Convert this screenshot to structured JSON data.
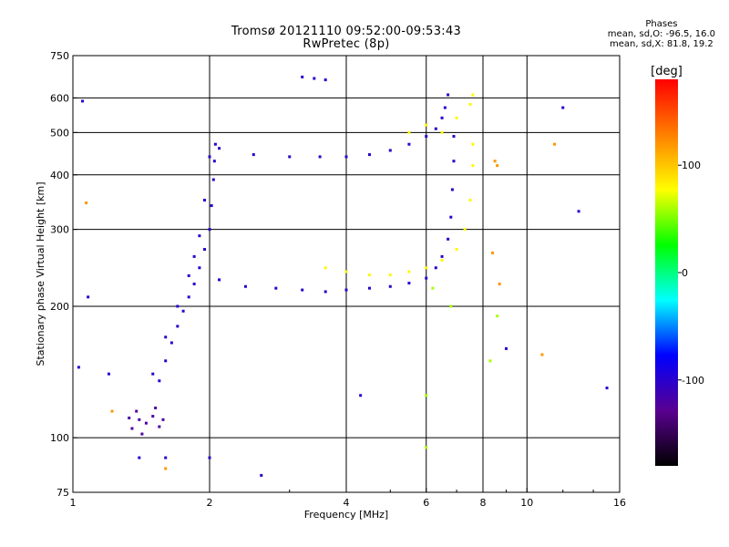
{
  "header": {
    "title_line1": "Tromsø 20121110 09:52:00-09:53:43",
    "title_line2": "RwPretec (8p)"
  },
  "info": {
    "heading": "Phases",
    "line_o": "mean, sd,O: -96.5, 16.0",
    "line_x": "mean, sd,X:  81.8, 19.2"
  },
  "chart_data": {
    "type": "scatter",
    "title": "Tromsø 20121110 09:52:00-09:53:43",
    "subtitle": "RwPretec (8p)",
    "xlabel": "Frequency [MHz]",
    "ylabel": "Stationary phase Virtual Height [km]",
    "x_scale": "log",
    "y_scale": "log",
    "xlim": [
      1,
      16
    ],
    "ylim": [
      75,
      750
    ],
    "x_ticks": [
      1,
      2,
      4,
      6,
      8,
      10,
      16
    ],
    "y_ticks": [
      75,
      100,
      200,
      300,
      400,
      500,
      600,
      750
    ],
    "x_gridlines": [
      2,
      4,
      6,
      8,
      10
    ],
    "y_gridlines": [
      100,
      200,
      300,
      400,
      500,
      600
    ],
    "grid": true,
    "colorbar": {
      "label": "[deg]",
      "range": [
        -180,
        180
      ],
      "ticks": [
        100,
        0,
        -100
      ],
      "colormap": "rainbow",
      "colors": [
        "#000000",
        "#5a0090",
        "#0000ff",
        "#00ffff",
        "#00ff00",
        "#ffff00",
        "#ff7f00",
        "#ff0000"
      ]
    },
    "series": [
      {
        "description_of_trace": "",
        "phase_deg": -100,
        "points": [
          [
            1.55,
            135
          ],
          [
            1.6,
            150
          ],
          [
            1.65,
            165
          ],
          [
            1.7,
            180
          ],
          [
            1.75,
            195
          ],
          [
            1.8,
            210
          ],
          [
            1.85,
            225
          ],
          [
            1.9,
            245
          ],
          [
            1.95,
            270
          ],
          [
            2.0,
            300
          ],
          [
            2.02,
            340
          ],
          [
            2.04,
            390
          ],
          [
            2.05,
            430
          ],
          [
            2.06,
            470
          ],
          [
            2.0,
            440
          ],
          [
            1.95,
            350
          ],
          [
            1.9,
            290
          ],
          [
            1.85,
            260
          ],
          [
            1.8,
            235
          ],
          [
            1.7,
            200
          ],
          [
            1.6,
            170
          ],
          [
            1.5,
            140
          ]
        ]
      },
      {
        "phase_deg": -100,
        "points": [
          [
            2.1,
            230
          ],
          [
            2.4,
            222
          ],
          [
            2.8,
            220
          ],
          [
            3.2,
            218
          ],
          [
            3.6,
            216
          ],
          [
            4.0,
            218
          ],
          [
            4.5,
            220
          ],
          [
            5.0,
            222
          ],
          [
            5.5,
            226
          ],
          [
            6.0,
            232
          ],
          [
            6.3,
            245
          ],
          [
            6.5,
            260
          ],
          [
            6.7,
            285
          ],
          [
            6.8,
            320
          ],
          [
            6.85,
            370
          ],
          [
            6.9,
            430
          ],
          [
            6.9,
            490
          ]
        ]
      },
      {
        "phase_deg": -100,
        "points": [
          [
            2.1,
            460
          ],
          [
            2.5,
            445
          ],
          [
            3.0,
            440
          ],
          [
            3.5,
            440
          ],
          [
            4.0,
            440
          ],
          [
            4.5,
            445
          ],
          [
            5.0,
            455
          ],
          [
            5.5,
            470
          ],
          [
            6.0,
            490
          ],
          [
            6.3,
            510
          ],
          [
            6.5,
            540
          ],
          [
            6.6,
            570
          ],
          [
            6.7,
            610
          ]
        ]
      },
      {
        "phase_deg": 80,
        "points": [
          [
            3.6,
            245
          ],
          [
            4.0,
            240
          ],
          [
            4.5,
            236
          ],
          [
            5.0,
            236
          ],
          [
            5.5,
            240
          ],
          [
            6.0,
            245
          ],
          [
            6.5,
            255
          ],
          [
            7.0,
            270
          ],
          [
            7.3,
            300
          ],
          [
            7.5,
            350
          ],
          [
            7.6,
            420
          ],
          [
            7.6,
            470
          ],
          [
            7.5,
            580
          ],
          [
            7.6,
            610
          ],
          [
            7.0,
            540
          ],
          [
            6.5,
            500
          ],
          [
            6.0,
            520
          ],
          [
            5.5,
            500
          ]
        ]
      },
      {
        "phase_deg": -120,
        "points": [
          [
            1.35,
            105
          ],
          [
            1.4,
            110
          ],
          [
            1.45,
            108
          ],
          [
            1.5,
            112
          ],
          [
            1.55,
            106
          ],
          [
            1.38,
            115
          ],
          [
            1.42,
            102
          ],
          [
            1.52,
            117
          ],
          [
            1.58,
            110
          ],
          [
            1.33,
            111
          ]
        ]
      },
      {
        "phase_deg": -100,
        "points": [
          [
            3.2,
            670
          ],
          [
            3.4,
            665
          ],
          [
            3.6,
            660
          ],
          [
            1.05,
            590
          ],
          [
            1.08,
            210
          ],
          [
            1.03,
            145
          ],
          [
            1.2,
            140
          ],
          [
            1.4,
            90
          ],
          [
            1.6,
            90
          ],
          [
            2.0,
            90
          ],
          [
            2.6,
            82
          ],
          [
            4.3,
            125
          ],
          [
            9.0,
            160
          ],
          [
            12.0,
            570
          ],
          [
            13.0,
            330
          ],
          [
            15.0,
            130
          ]
        ]
      },
      {
        "phase_deg": 120,
        "points": [
          [
            8.5,
            430
          ],
          [
            8.6,
            420
          ],
          [
            8.4,
            265
          ],
          [
            8.7,
            225
          ],
          [
            10.8,
            155
          ],
          [
            11.5,
            470
          ],
          [
            1.07,
            345
          ],
          [
            1.22,
            115
          ],
          [
            1.6,
            85
          ]
        ]
      },
      {
        "phase_deg": 60,
        "points": [
          [
            6.0,
            125
          ],
          [
            6.0,
            95
          ],
          [
            6.2,
            220
          ],
          [
            6.8,
            200
          ],
          [
            8.3,
            150
          ],
          [
            8.6,
            190
          ]
        ]
      }
    ]
  }
}
